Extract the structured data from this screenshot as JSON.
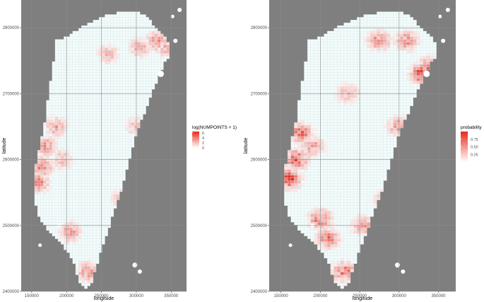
{
  "chart_data": [
    {
      "type": "heatmap",
      "title": "",
      "xlabel": "longitude",
      "ylabel": "latitude",
      "xlim": [
        135000,
        372000
      ],
      "ylim": [
        2400000,
        2842000
      ],
      "x_ticks": [
        "150000",
        "200000",
        "250000",
        "300000",
        "350000"
      ],
      "y_ticks": [
        "2400000",
        "2500000",
        "2600000",
        "2700000",
        "2800000"
      ],
      "legend": {
        "title": "log(NUMPOINTS + 1)",
        "breaks": [
          "6",
          "4",
          "2",
          "0"
        ],
        "range": [
          0,
          6.5
        ],
        "low_color": "#ffffff",
        "high_color": "#e8291c",
        "placement": "right"
      },
      "background_color": "#7f7f7f",
      "hotspots": [
        {
          "lon": 165000,
          "lat": 2590000,
          "value": 4.5
        },
        {
          "lon": 160000,
          "lat": 2565000,
          "value": 4.0
        },
        {
          "lon": 172000,
          "lat": 2620000,
          "value": 3.5
        },
        {
          "lon": 185000,
          "lat": 2650000,
          "value": 3.2
        },
        {
          "lon": 195000,
          "lat": 2600000,
          "value": 2.5
        },
        {
          "lon": 205000,
          "lat": 2490000,
          "value": 3.5
        },
        {
          "lon": 230000,
          "lat": 2430000,
          "value": 3.8
        },
        {
          "lon": 280000,
          "lat": 2540000,
          "value": 2.5
        },
        {
          "lon": 300000,
          "lat": 2650000,
          "value": 2.2
        },
        {
          "lon": 330000,
          "lat": 2780000,
          "value": 3.6
        },
        {
          "lon": 345000,
          "lat": 2770000,
          "value": 3.0
        },
        {
          "lon": 260000,
          "lat": 2760000,
          "value": 2.5
        },
        {
          "lon": 305000,
          "lat": 2770000,
          "value": 2.8
        }
      ]
    },
    {
      "type": "heatmap",
      "title": "",
      "xlabel": "longitude",
      "ylabel": "latitude",
      "xlim": [
        135000,
        372000
      ],
      "ylim": [
        2400000,
        2842000
      ],
      "x_ticks": [
        "150000",
        "200000",
        "250000",
        "300000",
        "350000"
      ],
      "y_ticks": [
        "2400000",
        "2500000",
        "2600000",
        "2700000",
        "2800000"
      ],
      "legend": {
        "title": "probability",
        "breaks": [
          "0.75",
          "0.50",
          "0.25"
        ],
        "range": [
          0,
          1
        ],
        "low_color": "#ffffff",
        "high_color": "#e8291c",
        "placement": "right"
      },
      "background_color": "#7f7f7f",
      "hotspots": [
        {
          "lon": 160000,
          "lat": 2570000,
          "value": 0.95
        },
        {
          "lon": 170000,
          "lat": 2600000,
          "value": 0.85
        },
        {
          "lon": 175000,
          "lat": 2640000,
          "value": 0.7
        },
        {
          "lon": 190000,
          "lat": 2620000,
          "value": 0.5
        },
        {
          "lon": 200000,
          "lat": 2510000,
          "value": 0.7
        },
        {
          "lon": 210000,
          "lat": 2480000,
          "value": 0.65
        },
        {
          "lon": 230000,
          "lat": 2430000,
          "value": 0.7
        },
        {
          "lon": 255000,
          "lat": 2500000,
          "value": 0.5
        },
        {
          "lon": 285000,
          "lat": 2540000,
          "value": 0.6
        },
        {
          "lon": 300000,
          "lat": 2650000,
          "value": 0.55
        },
        {
          "lon": 275000,
          "lat": 2780000,
          "value": 0.6
        },
        {
          "lon": 310000,
          "lat": 2780000,
          "value": 0.55
        },
        {
          "lon": 330000,
          "lat": 2730000,
          "value": 0.95
        },
        {
          "lon": 340000,
          "lat": 2740000,
          "value": 0.8
        },
        {
          "lon": 235000,
          "lat": 2700000,
          "value": 0.4
        }
      ]
    }
  ]
}
